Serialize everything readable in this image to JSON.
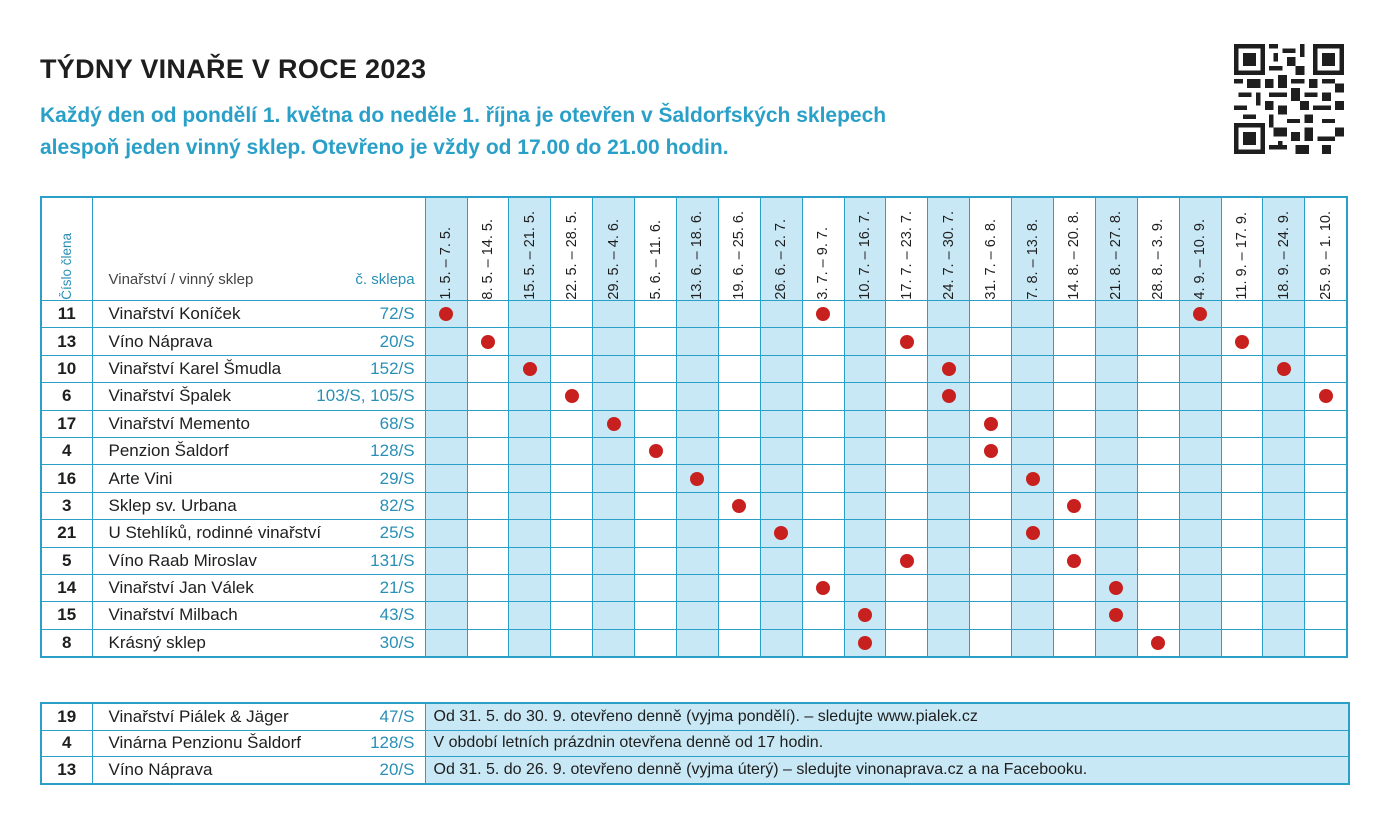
{
  "title": "TÝDNY VINAŘE V ROCE 2023",
  "subtitle_line1": "Každý den od pondělí 1. května do neděle 1. října je otevřen v Šaldorfských sklepech",
  "subtitle_line2": "alespoň jeden vinný sklep. Otevřeno je vždy od 17.00 do 21.00 hodin.",
  "header": {
    "member_no": "Číslo člena",
    "winery": "Vinařství / vinný sklep",
    "cellar_no": "č. sklepa"
  },
  "weeks": [
    "1. 5. – 7. 5.",
    "8. 5. – 14. 5.",
    "15. 5. – 21. 5.",
    "22. 5. – 28. 5.",
    "29. 5. – 4. 6.",
    "5. 6. – 11. 6.",
    "13. 6. – 18. 6.",
    "19. 6. – 25. 6.",
    "26. 6. – 2. 7.",
    "3. 7. – 9. 7.",
    "10. 7. – 16. 7.",
    "17. 7. – 23. 7.",
    "24. 7. – 30. 7.",
    "31. 7. – 6. 8.",
    "7. 8. – 13. 8.",
    "14. 8. – 20. 8.",
    "21. 8. – 27. 8.",
    "28. 8. – 3. 9.",
    "4. 9. – 10. 9.",
    "11. 9. – 17. 9.",
    "18. 9. – 24. 9.",
    "25. 9. – 1. 10."
  ],
  "rows": [
    {
      "num": "11",
      "name": "Vinařství Koníček",
      "cellar": "72/S",
      "open_weeks": [
        0,
        9,
        18
      ]
    },
    {
      "num": "13",
      "name": "Víno Náprava",
      "cellar": "20/S",
      "open_weeks": [
        1,
        11,
        19
      ]
    },
    {
      "num": "10",
      "name": "Vinařství Karel Šmudla",
      "cellar": "152/S",
      "open_weeks": [
        2,
        12,
        20
      ]
    },
    {
      "num": "6",
      "name": "Vinařství Špalek",
      "cellar": "103/S, 105/S",
      "open_weeks": [
        3,
        12,
        21
      ]
    },
    {
      "num": "17",
      "name": "Vinařství Memento",
      "cellar": "68/S",
      "open_weeks": [
        4,
        13
      ]
    },
    {
      "num": "4",
      "name": "Penzion Šaldorf",
      "cellar": "128/S",
      "open_weeks": [
        5,
        13
      ]
    },
    {
      "num": "16",
      "name": "Arte Vini",
      "cellar": "29/S",
      "open_weeks": [
        6,
        14
      ]
    },
    {
      "num": "3",
      "name": "Sklep sv. Urbana",
      "cellar": "82/S",
      "open_weeks": [
        7,
        15
      ]
    },
    {
      "num": "21",
      "name": "U Stehlíků, rodinné vinařství",
      "cellar": "25/S",
      "open_weeks": [
        8,
        14
      ]
    },
    {
      "num": "5",
      "name": "Víno Raab Miroslav",
      "cellar": "131/S",
      "open_weeks": [
        11,
        15
      ]
    },
    {
      "num": "14",
      "name": "Vinařství Jan Válek",
      "cellar": "21/S",
      "open_weeks": [
        9,
        16
      ]
    },
    {
      "num": "15",
      "name": "Vinařství Milbach",
      "cellar": "43/S",
      "open_weeks": [
        10,
        16
      ]
    },
    {
      "num": "8",
      "name": "Krásný sklep",
      "cellar": "30/S",
      "open_weeks": [
        10,
        17
      ]
    }
  ],
  "extra_rows": [
    {
      "num": "19",
      "name": "Vinařství Piálek & Jäger",
      "cellar": "47/S",
      "note": "Od 31. 5. do 30. 9. otevřeno denně (vyjma pondělí). – sledujte www.pialek.cz"
    },
    {
      "num": "4",
      "name": "Vinárna Penzionu Šaldorf",
      "cellar": "128/S",
      "note": "V období letních prázdnin otevřena denně od 17 hodin."
    },
    {
      "num": "13",
      "name": "Víno Náprava",
      "cellar": "20/S",
      "note": "Od 31. 5. do 26. 9. otevřeno denně (vyjma úterý) – sledujte vinonaprava.cz a na Facebooku."
    }
  ],
  "colors": {
    "accent": "#2aa0c8",
    "shade": "#c9e8f5",
    "dot": "#c8201e"
  },
  "icons": {
    "qr": "qr-code-icon",
    "open": "red-dot-icon"
  }
}
